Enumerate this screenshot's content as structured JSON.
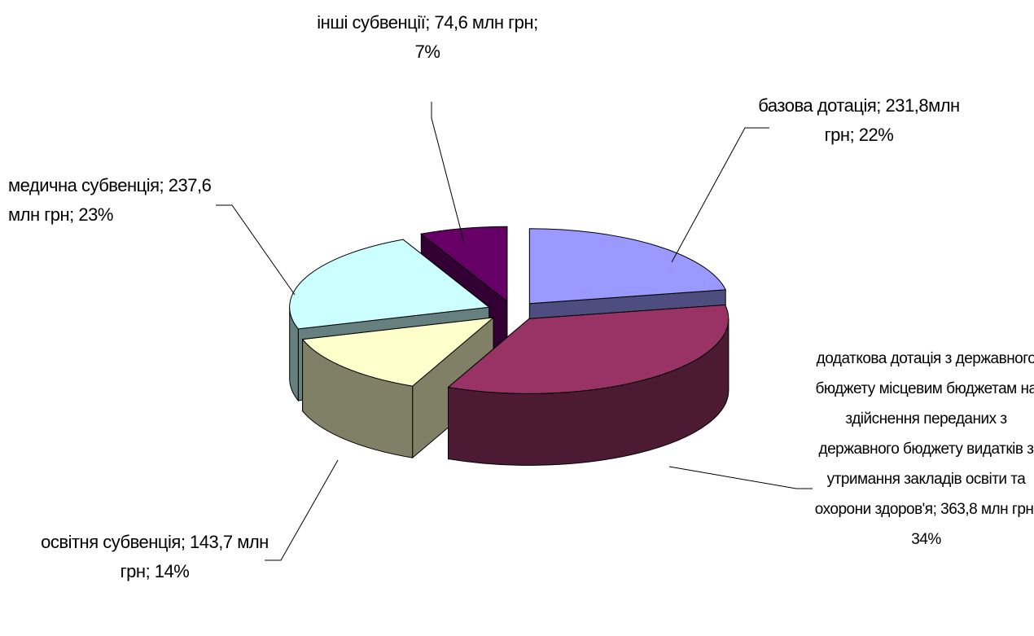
{
  "chart_data": {
    "type": "pie",
    "categories": [
      "базова дотація",
      "додаткова дотація з державного бюджету місцевим бюджетам на здійснення переданих з державного бюджету видатків з утримання закладів освіти та охорони здоров'я",
      "освітня субвенція",
      "медична субвенція",
      "інші субвенції"
    ],
    "values": [
      231.8,
      363.8,
      143.7,
      237.6,
      74.6
    ],
    "value_labels": [
      "231,8млн грн",
      "363,8 млн грн",
      "143,7 млн грн",
      "237,6 млн грн",
      "74,6 млн грн"
    ],
    "percentages": [
      22,
      34,
      14,
      23,
      7
    ],
    "percentage_labels": [
      "22%",
      "34%",
      "14%",
      "23%",
      "7%"
    ],
    "separator": "; ",
    "colors": [
      "#9999ff",
      "#993366",
      "#ffffcc",
      "#ccffff",
      "#660066"
    ],
    "three_d": true,
    "exploded": true
  }
}
